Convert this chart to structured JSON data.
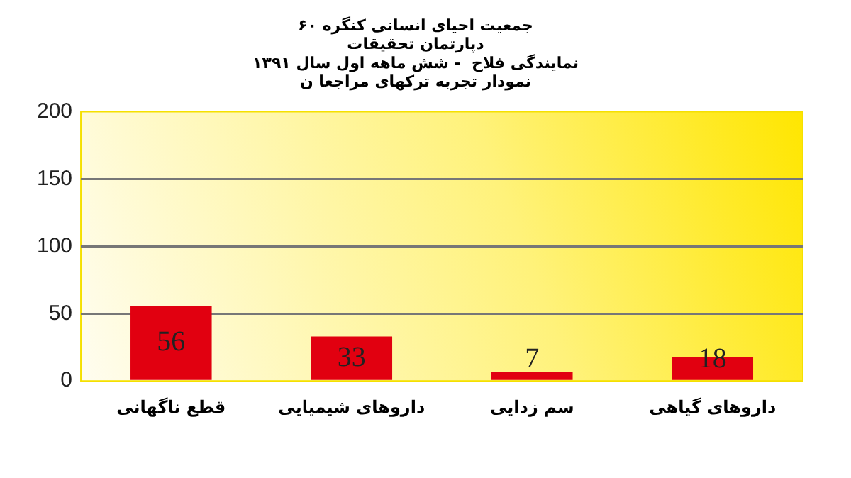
{
  "chart_data": {
    "type": "bar",
    "title": "جمعیت احیای انسانی کنگره ۶۰",
    "subtitle": "دپارتمان تحقیقات\nنمایندگی فلاح  - شش ماهه اول سال ۱۳۹۱\nنمودار تجربه ترکهای مراجعا ن",
    "categories": [
      "قطع ناگهانی",
      "داروهای شیمیایی",
      "سم زدایی",
      "داروهای گیاهی"
    ],
    "values": [
      56,
      33,
      7,
      18
    ],
    "color": "#e10010",
    "ylim": [
      0,
      200
    ],
    "yticks": [
      0,
      50,
      100,
      150,
      200
    ],
    "grid": "y",
    "data_labels": true
  }
}
